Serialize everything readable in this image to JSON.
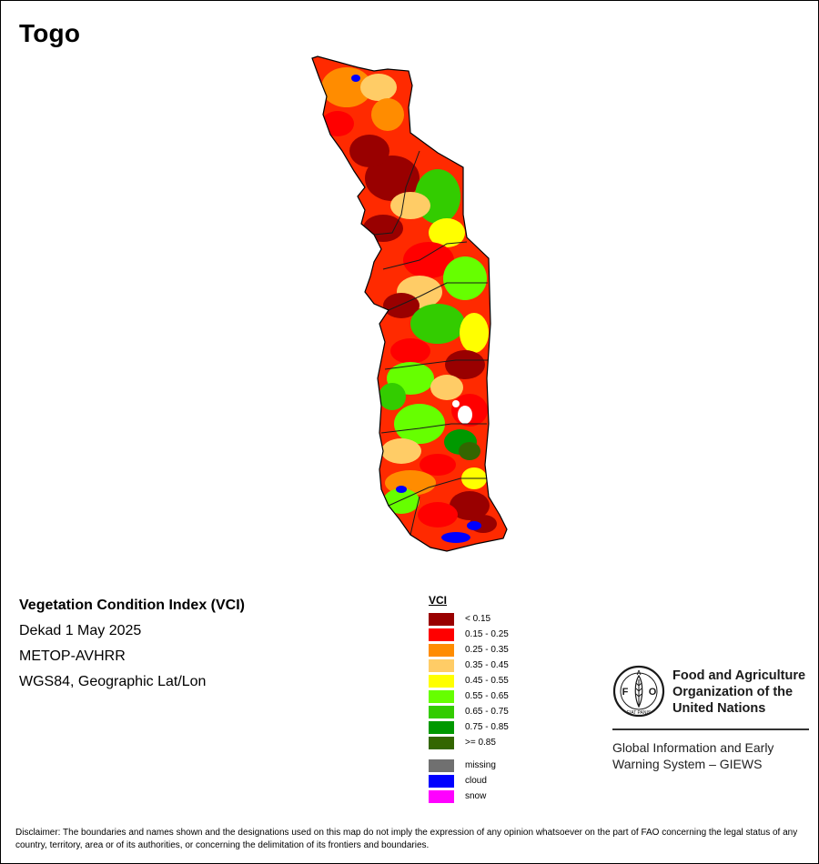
{
  "map": {
    "title": "Togo"
  },
  "info": {
    "index_title": "Vegetation Condition Index (VCI)",
    "period": "Dekad 1 May 2025",
    "sensor": "METOP-AVHRR",
    "projection": "WGS84, Geographic Lat/Lon"
  },
  "legend": {
    "title": "VCI",
    "classes": [
      {
        "label": "< 0.15",
        "color": "#990000"
      },
      {
        "label": "0.15 - 0.25",
        "color": "#ff0000"
      },
      {
        "label": "0.25 - 0.35",
        "color": "#ff8c00"
      },
      {
        "label": "0.35 - 0.45",
        "color": "#ffcc66"
      },
      {
        "label": "0.45 - 0.55",
        "color": "#ffff00"
      },
      {
        "label": "0.55 - 0.65",
        "color": "#66ff00"
      },
      {
        "label": "0.65 - 0.75",
        "color": "#33cc00"
      },
      {
        "label": "0.75 - 0.85",
        "color": "#009900"
      },
      {
        "label": ">= 0.85",
        "color": "#336600"
      }
    ],
    "extra": [
      {
        "label": "missing",
        "color": "#707070"
      },
      {
        "label": "cloud",
        "color": "#0000ff"
      },
      {
        "label": "snow",
        "color": "#ff00ff"
      }
    ]
  },
  "fao": {
    "logo_text": "FAO",
    "logo_motto": "FIAT PANIS",
    "name_line1": "Food and Agriculture",
    "name_line2": "Organization of the",
    "name_line3": "United Nations",
    "giews_line1": "Global Information and Early",
    "giews_line2": "Warning System – GIEWS"
  },
  "disclaimer": {
    "text": "Disclaimer: The boundaries and names shown and the designations used on this map do not imply the expression of any opinion whatsoever on the part of FAO concerning the legal status of any country, territory, area or of its authorities, or concerning the delimitation of its frontiers and boundaries."
  }
}
